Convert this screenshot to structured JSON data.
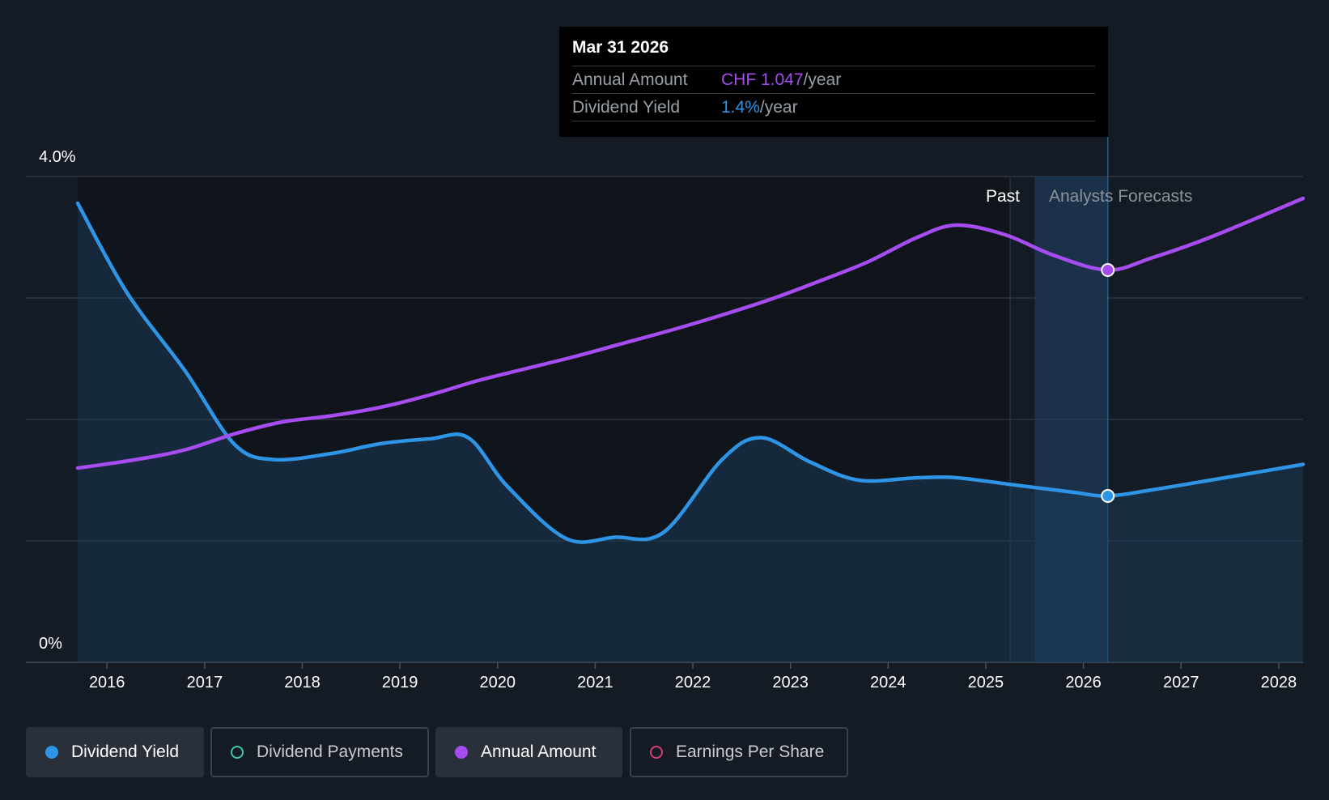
{
  "tooltip": {
    "date": "Mar 31 2026",
    "rows": [
      {
        "label": "Annual Amount",
        "value": "CHF 1.047",
        "unit": "/year",
        "color": "#a64cf0"
      },
      {
        "label": "Dividend Yield",
        "value": "1.4%",
        "unit": "/year",
        "color": "#2e94e6"
      }
    ]
  },
  "regions": {
    "past": "Past",
    "forecast": "Analysts Forecasts"
  },
  "legend": [
    {
      "label": "Dividend Yield",
      "active": true,
      "color": "#2e94e6",
      "filled": true
    },
    {
      "label": "Dividend Payments",
      "active": false,
      "color": "#3cc8b4",
      "filled": false
    },
    {
      "label": "Annual Amount",
      "active": true,
      "color": "#a64cf0",
      "filled": true
    },
    {
      "label": "Earnings Per Share",
      "active": false,
      "color": "#d63c7a",
      "filled": false
    }
  ],
  "chart_data": {
    "type": "line",
    "y_tick_labels": [
      "4.0%",
      "0%"
    ],
    "ylim": [
      0,
      4.0
    ],
    "xlim": [
      2015.3,
      2028.25
    ],
    "x_tick_labels": [
      "2016",
      "2017",
      "2018",
      "2019",
      "2020",
      "2021",
      "2022",
      "2023",
      "2024",
      "2025",
      "2026",
      "2027",
      "2028"
    ],
    "grid": true,
    "divider_past_forecast": 2025.25,
    "forecast_highlight": [
      2025.5,
      2026.25
    ],
    "hover_x": 2026.25,
    "series": [
      {
        "key": "yield",
        "color": "#2e94e6",
        "filled": true,
        "points": [
          [
            2015.7,
            3.78
          ],
          [
            2016.2,
            3.05
          ],
          [
            2016.8,
            2.4
          ],
          [
            2017.3,
            1.8
          ],
          [
            2017.7,
            1.67
          ],
          [
            2018.3,
            1.72
          ],
          [
            2018.8,
            1.8
          ],
          [
            2019.3,
            1.84
          ],
          [
            2019.7,
            1.85
          ],
          [
            2020.1,
            1.45
          ],
          [
            2020.7,
            1.02
          ],
          [
            2021.2,
            1.03
          ],
          [
            2021.7,
            1.07
          ],
          [
            2022.3,
            1.67
          ],
          [
            2022.7,
            1.85
          ],
          [
            2023.2,
            1.65
          ],
          [
            2023.7,
            1.5
          ],
          [
            2024.3,
            1.52
          ],
          [
            2024.7,
            1.52
          ],
          [
            2025.3,
            1.46
          ],
          [
            2025.9,
            1.4
          ],
          [
            2026.25,
            1.37
          ],
          [
            2026.7,
            1.42
          ],
          [
            2027.3,
            1.5
          ],
          [
            2028.25,
            1.63
          ]
        ]
      },
      {
        "key": "annual",
        "color": "#a64cf0",
        "filled": false,
        "points": [
          [
            2015.7,
            1.6
          ],
          [
            2016.3,
            1.67
          ],
          [
            2016.8,
            1.75
          ],
          [
            2017.3,
            1.88
          ],
          [
            2017.8,
            1.98
          ],
          [
            2018.3,
            2.03
          ],
          [
            2018.8,
            2.1
          ],
          [
            2019.3,
            2.2
          ],
          [
            2019.8,
            2.32
          ],
          [
            2020.3,
            2.42
          ],
          [
            2020.8,
            2.52
          ],
          [
            2021.3,
            2.63
          ],
          [
            2021.8,
            2.74
          ],
          [
            2022.3,
            2.86
          ],
          [
            2022.8,
            2.99
          ],
          [
            2023.3,
            3.14
          ],
          [
            2023.8,
            3.3
          ],
          [
            2024.3,
            3.5
          ],
          [
            2024.7,
            3.6
          ],
          [
            2025.2,
            3.52
          ],
          [
            2025.7,
            3.35
          ],
          [
            2026.25,
            3.23
          ],
          [
            2026.7,
            3.33
          ],
          [
            2027.3,
            3.5
          ],
          [
            2028.25,
            3.82
          ]
        ]
      }
    ]
  }
}
